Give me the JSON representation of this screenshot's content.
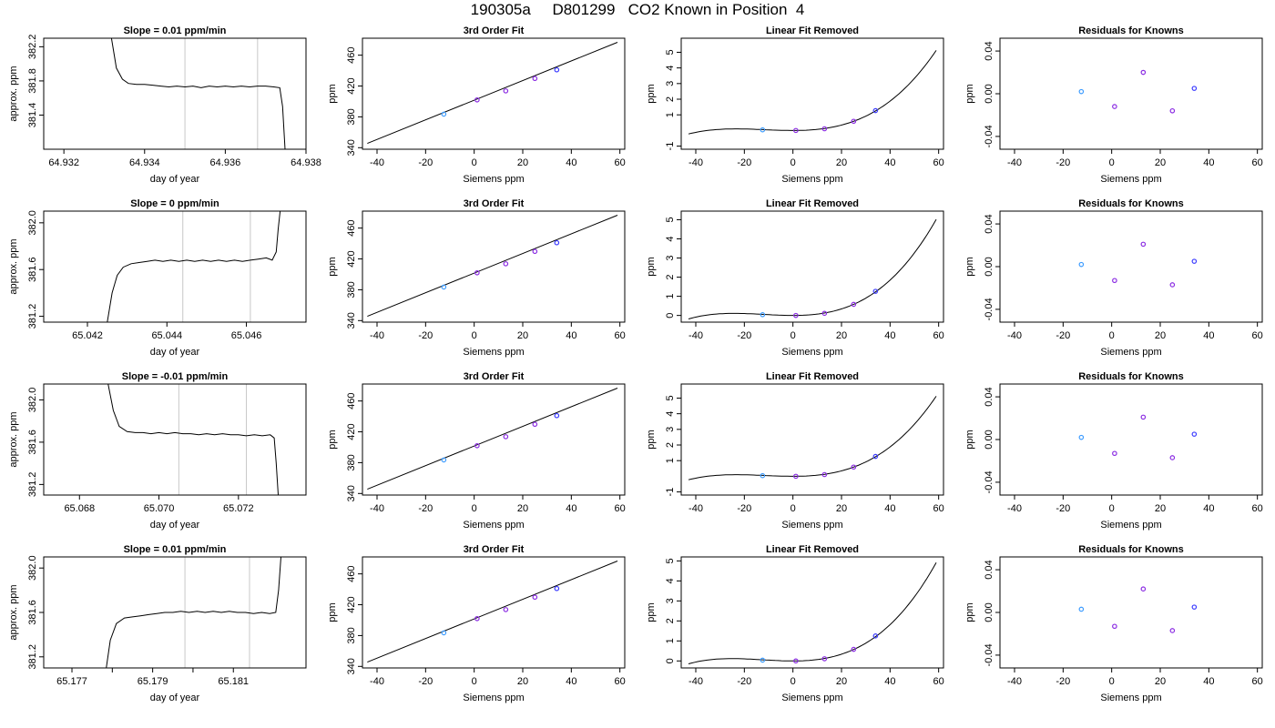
{
  "figure": {
    "title": "190305a     D801299   CO2 Known in Position  4"
  },
  "chart_data": [
    {
      "type": "line",
      "title": "Slope =  0.01  ppm/min",
      "xlabel": "day of year",
      "ylabel": "approx. ppm",
      "xlim": [
        64.9315,
        64.938
      ],
      "ylim": [
        381.0,
        382.3
      ],
      "xticks": [
        64.932,
        64.934,
        64.936,
        64.938
      ],
      "xtick_labels": [
        "64.932",
        "64.934",
        "64.936",
        "64.938"
      ],
      "yticks": [
        381.4,
        381.8,
        382.2
      ],
      "ytick_labels": [
        "381.4",
        "381.8",
        "382.2"
      ],
      "vlines": [
        64.935,
        64.9368
      ],
      "series": [
        {
          "x": [
            64.93318,
            64.9333,
            64.93345,
            64.9336,
            64.9338,
            64.934,
            64.9342,
            64.9344,
            64.9346,
            64.9348,
            64.935,
            64.9352,
            64.9354,
            64.9356,
            64.9358,
            64.936,
            64.9362,
            64.9364,
            64.9366,
            64.9368,
            64.937,
            64.9372,
            64.93735,
            64.93742,
            64.93748
          ],
          "y": [
            382.3,
            381.95,
            381.82,
            381.77,
            381.76,
            381.76,
            381.75,
            381.74,
            381.73,
            381.74,
            381.73,
            381.74,
            381.72,
            381.74,
            381.73,
            381.74,
            381.73,
            381.74,
            381.73,
            381.74,
            381.74,
            381.73,
            381.72,
            381.5,
            381.0
          ]
        }
      ]
    },
    {
      "type": "scatter",
      "title": "3rd Order Fit",
      "xlabel": "Siemens ppm",
      "ylabel": "ppm",
      "xlim": [
        -46,
        62
      ],
      "ylim": [
        338,
        482
      ],
      "xticks": [
        -40,
        -20,
        0,
        20,
        40,
        60
      ],
      "xtick_labels": [
        "-40",
        "-20",
        "0",
        "20",
        "40",
        "60"
      ],
      "yticks": [
        340,
        380,
        420,
        460
      ],
      "ytick_labels": [
        "340",
        "380",
        "420",
        "460"
      ],
      "fit_line": {
        "x": [
          -44,
          59
        ],
        "y": [
          345.6,
          476.7
        ]
      },
      "points": {
        "x": [
          -12.5,
          1.2,
          13,
          25,
          34
        ],
        "y": [
          383.5,
          402,
          413.7,
          429.8,
          441
        ]
      }
    },
    {
      "type": "scatter",
      "title": "Linear Fit Removed",
      "xlabel": "Siemens ppm",
      "ylabel": "ppm",
      "xlim": [
        -46,
        62
      ],
      "ylim": [
        -1.2,
        5.9
      ],
      "xticks": [
        -40,
        -20,
        0,
        20,
        40,
        60
      ],
      "xtick_labels": [
        "-40",
        "-20",
        "0",
        "20",
        "40",
        "60"
      ],
      "yticks": [
        -1,
        1,
        2,
        3,
        4,
        5
      ],
      "ytick_labels": [
        "-1",
        "1",
        "2",
        "3",
        "4",
        "5"
      ],
      "curve": {
        "coef": [
          0.0,
          0.0,
          0.00055,
          1.56e-05
        ]
      },
      "curve_range": [
        -43,
        59
      ],
      "points": {
        "x": [
          -12.5,
          1.2,
          13,
          25,
          34
        ],
        "y": [
          0.04,
          0.0,
          0.11,
          0.59,
          1.27
        ]
      }
    },
    {
      "type": "scatter",
      "title": "Residuals for Knowns",
      "xlabel": "Siemens ppm",
      "ylabel": "ppm",
      "xlim": [
        -46,
        62
      ],
      "ylim": [
        -0.052,
        0.052
      ],
      "xticks": [
        -40,
        -20,
        0,
        20,
        40,
        60
      ],
      "xtick_labels": [
        "-40",
        "-20",
        "0",
        "20",
        "40",
        "60"
      ],
      "yticks": [
        -0.04,
        0.0,
        0.04
      ],
      "ytick_labels": [
        "-0.04",
        "0.00",
        "0.04"
      ],
      "points": {
        "x": [
          -12.5,
          1.2,
          13,
          25,
          34
        ],
        "y": [
          0.002,
          -0.012,
          0.02,
          -0.016,
          0.005
        ]
      }
    },
    {
      "type": "line",
      "title": "Slope =  0  ppm/min",
      "xlabel": "day of year",
      "ylabel": "approx. ppm",
      "xlim": [
        65.0409,
        65.0475
      ],
      "ylim": [
        381.15,
        382.1
      ],
      "xticks": [
        65.042,
        65.044,
        65.046
      ],
      "xtick_labels": [
        "65.042",
        "65.044",
        "65.046"
      ],
      "yticks": [
        381.2,
        381.6,
        382.0
      ],
      "ytick_labels": [
        "381.2",
        "381.6",
        "382.0"
      ],
      "vlines": [
        65.0444,
        65.0461
      ],
      "series": [
        {
          "x": [
            65.0425,
            65.04262,
            65.04275,
            65.0429,
            65.0431,
            65.0433,
            65.0435,
            65.0437,
            65.0439,
            65.0441,
            65.0443,
            65.0445,
            65.0447,
            65.0449,
            65.0451,
            65.0453,
            65.0455,
            65.0457,
            65.0459,
            65.0461,
            65.0463,
            65.0465,
            65.04665,
            65.04675,
            65.0468,
            65.04685
          ],
          "y": [
            381.15,
            381.4,
            381.55,
            381.62,
            381.65,
            381.66,
            381.67,
            381.68,
            381.67,
            381.68,
            381.67,
            381.68,
            381.67,
            381.68,
            381.67,
            381.68,
            381.67,
            381.68,
            381.67,
            381.68,
            381.69,
            381.7,
            381.68,
            381.75,
            381.95,
            382.1
          ]
        }
      ]
    },
    {
      "type": "scatter",
      "title": "3rd Order Fit",
      "xlabel": "Siemens ppm",
      "ylabel": "ppm",
      "xlim": [
        -46,
        62
      ],
      "ylim": [
        338,
        482
      ],
      "xticks": [
        -40,
        -20,
        0,
        20,
        40,
        60
      ],
      "xtick_labels": [
        "-40",
        "-20",
        "0",
        "20",
        "40",
        "60"
      ],
      "yticks": [
        340,
        380,
        420,
        460
      ],
      "ytick_labels": [
        "340",
        "380",
        "420",
        "460"
      ],
      "fit_line": {
        "x": [
          -44,
          59
        ],
        "y": [
          345.6,
          476.7
        ]
      },
      "points": {
        "x": [
          -12.5,
          1.2,
          13,
          25,
          34
        ],
        "y": [
          383.5,
          402,
          413.7,
          429.8,
          441
        ]
      }
    },
    {
      "type": "scatter",
      "title": "Linear Fit Removed",
      "xlabel": "Siemens ppm",
      "ylabel": "ppm",
      "xlim": [
        -46,
        62
      ],
      "ylim": [
        -0.35,
        5.45
      ],
      "xticks": [
        -40,
        -20,
        0,
        20,
        40,
        60
      ],
      "xtick_labels": [
        "-40",
        "-20",
        "0",
        "20",
        "40",
        "60"
      ],
      "yticks": [
        0,
        1,
        2,
        3,
        4,
        5
      ],
      "ytick_labels": [
        "0",
        "1",
        "2",
        "3",
        "4",
        "5"
      ],
      "curve": {
        "coef": [
          0.0,
          0.0,
          0.00055,
          1.51e-05
        ]
      },
      "curve_range": [
        -43,
        59
      ],
      "points": {
        "x": [
          -12.5,
          1.2,
          13,
          25,
          34
        ],
        "y": [
          0.04,
          0.0,
          0.11,
          0.58,
          1.26
        ]
      }
    },
    {
      "type": "scatter",
      "title": "Residuals for Knowns",
      "xlabel": "Siemens ppm",
      "ylabel": "ppm",
      "xlim": [
        -46,
        62
      ],
      "ylim": [
        -0.052,
        0.052
      ],
      "xticks": [
        -40,
        -20,
        0,
        20,
        40,
        60
      ],
      "xtick_labels": [
        "-40",
        "-20",
        "0",
        "20",
        "40",
        "60"
      ],
      "yticks": [
        -0.04,
        0.0,
        0.04
      ],
      "ytick_labels": [
        "-0.04",
        "0.00",
        "0.04"
      ],
      "points": {
        "x": [
          -12.5,
          1.2,
          13,
          25,
          34
        ],
        "y": [
          0.002,
          -0.013,
          0.021,
          -0.017,
          0.005
        ]
      }
    },
    {
      "type": "line",
      "title": "Slope =  -0.01  ppm/min",
      "xlabel": "day of year",
      "ylabel": "approx. ppm",
      "xlim": [
        65.0671,
        65.0737
      ],
      "ylim": [
        381.1,
        382.15
      ],
      "xticks": [
        65.068,
        65.07,
        65.072
      ],
      "xtick_labels": [
        "65.068",
        "65.070",
        "65.072"
      ],
      "yticks": [
        381.2,
        381.6,
        382.0
      ],
      "ytick_labels": [
        "381.2",
        "381.6",
        "382.0"
      ],
      "vlines": [
        65.0705,
        65.0722
      ],
      "series": [
        {
          "x": [
            65.06872,
            65.06885,
            65.069,
            65.0692,
            65.0694,
            65.0696,
            65.0698,
            65.07,
            65.0702,
            65.0704,
            65.0706,
            65.0708,
            65.071,
            65.0712,
            65.0714,
            65.0716,
            65.0718,
            65.072,
            65.0722,
            65.0724,
            65.0726,
            65.0728,
            65.0729,
            65.07295,
            65.073
          ],
          "y": [
            382.15,
            381.9,
            381.75,
            381.7,
            381.69,
            381.69,
            381.68,
            381.69,
            381.68,
            381.69,
            381.68,
            381.68,
            381.67,
            381.68,
            381.67,
            381.68,
            381.67,
            381.67,
            381.66,
            381.67,
            381.66,
            381.67,
            381.64,
            381.4,
            381.1
          ]
        }
      ]
    },
    {
      "type": "scatter",
      "title": "3rd Order Fit",
      "xlabel": "Siemens ppm",
      "ylabel": "ppm",
      "xlim": [
        -46,
        62
      ],
      "ylim": [
        338,
        482
      ],
      "xticks": [
        -40,
        -20,
        0,
        20,
        40,
        60
      ],
      "xtick_labels": [
        "-40",
        "-20",
        "0",
        "20",
        "40",
        "60"
      ],
      "yticks": [
        340,
        380,
        420,
        460
      ],
      "ytick_labels": [
        "340",
        "380",
        "420",
        "460"
      ],
      "fit_line": {
        "x": [
          -44,
          59
        ],
        "y": [
          345.6,
          476.7
        ]
      },
      "points": {
        "x": [
          -12.5,
          1.2,
          13,
          25,
          34
        ],
        "y": [
          383.5,
          402,
          413.7,
          429.8,
          441
        ]
      }
    },
    {
      "type": "scatter",
      "title": "Linear Fit Removed",
      "xlabel": "Siemens ppm",
      "ylabel": "ppm",
      "xlim": [
        -46,
        62
      ],
      "ylim": [
        -1.2,
        5.9
      ],
      "xticks": [
        -40,
        -20,
        0,
        20,
        40,
        60
      ],
      "xtick_labels": [
        "-40",
        "-20",
        "0",
        "20",
        "40",
        "60"
      ],
      "yticks": [
        -1,
        1,
        2,
        3,
        4,
        5
      ],
      "ytick_labels": [
        "-1",
        "1",
        "2",
        "3",
        "4",
        "5"
      ],
      "curve": {
        "coef": [
          0.0,
          0.0,
          0.00055,
          1.56e-05
        ]
      },
      "curve_range": [
        -43,
        59
      ],
      "points": {
        "x": [
          -12.5,
          1.2,
          13,
          25,
          34
        ],
        "y": [
          0.04,
          0.0,
          0.11,
          0.59,
          1.27
        ]
      }
    },
    {
      "type": "scatter",
      "title": "Residuals for Knowns",
      "xlabel": "Siemens ppm",
      "ylabel": "ppm",
      "xlim": [
        -46,
        62
      ],
      "ylim": [
        -0.052,
        0.052
      ],
      "xticks": [
        -40,
        -20,
        0,
        20,
        40,
        60
      ],
      "xtick_labels": [
        "-40",
        "-20",
        "0",
        "20",
        "40",
        "60"
      ],
      "yticks": [
        -0.04,
        0.0,
        0.04
      ],
      "ytick_labels": [
        "-0.04",
        "0.00",
        "0.04"
      ],
      "points": {
        "x": [
          -12.5,
          1.2,
          13,
          25,
          34
        ],
        "y": [
          0.002,
          -0.013,
          0.021,
          -0.017,
          0.005
        ]
      }
    },
    {
      "type": "line",
      "title": "Slope =  0.01  ppm/min",
      "xlabel": "day of year",
      "ylabel": "approx. ppm",
      "xlim": [
        65.1763,
        65.1828
      ],
      "ylim": [
        381.1,
        382.1
      ],
      "xticks": [
        65.177,
        65.178,
        65.179,
        65.18,
        65.181
      ],
      "xtick_labels": [
        "65.177",
        "",
        "65.179",
        "",
        "65.181"
      ],
      "yticks": [
        381.2,
        381.6,
        382.0
      ],
      "ytick_labels": [
        "381.2",
        "381.6",
        "382.0"
      ],
      "vlines": [
        65.1798,
        65.1814
      ],
      "series": [
        {
          "x": [
            65.17785,
            65.17795,
            65.1781,
            65.1783,
            65.1785,
            65.1787,
            65.1789,
            65.1791,
            65.1793,
            65.1795,
            65.1797,
            65.1799,
            65.1801,
            65.1803,
            65.1805,
            65.1807,
            65.1809,
            65.1811,
            65.1813,
            65.1815,
            65.1817,
            65.1819,
            65.18205,
            65.18212,
            65.18218
          ],
          "y": [
            381.1,
            381.35,
            381.5,
            381.55,
            381.56,
            381.57,
            381.58,
            381.59,
            381.6,
            381.6,
            381.61,
            381.6,
            381.61,
            381.6,
            381.61,
            381.6,
            381.61,
            381.6,
            381.6,
            381.59,
            381.6,
            381.59,
            381.6,
            381.8,
            382.1
          ]
        }
      ]
    },
    {
      "type": "scatter",
      "title": "3rd Order Fit",
      "xlabel": "Siemens ppm",
      "ylabel": "ppm",
      "xlim": [
        -46,
        62
      ],
      "ylim": [
        338,
        482
      ],
      "xticks": [
        -40,
        -20,
        0,
        20,
        40,
        60
      ],
      "xtick_labels": [
        "-40",
        "-20",
        "0",
        "20",
        "40",
        "60"
      ],
      "yticks": [
        340,
        380,
        420,
        460
      ],
      "ytick_labels": [
        "340",
        "380",
        "420",
        "460"
      ],
      "fit_line": {
        "x": [
          -44,
          59
        ],
        "y": [
          345.6,
          476.7
        ]
      },
      "points": {
        "x": [
          -12.5,
          1.2,
          13,
          25,
          34
        ],
        "y": [
          383.5,
          402,
          413.7,
          429.8,
          441
        ]
      }
    },
    {
      "type": "scatter",
      "title": "Linear Fit Removed",
      "xlabel": "Siemens ppm",
      "ylabel": "ppm",
      "xlim": [
        -46,
        62
      ],
      "ylim": [
        -0.35,
        5.2
      ],
      "xticks": [
        -40,
        -20,
        0,
        20,
        40,
        60
      ],
      "xtick_labels": [
        "-40",
        "-20",
        "0",
        "20",
        "40",
        "60"
      ],
      "yticks": [
        0,
        1,
        2,
        3,
        4,
        5
      ],
      "ytick_labels": [
        "0",
        "1",
        "2",
        "3",
        "4",
        "5"
      ],
      "curve": {
        "coef": [
          0.0,
          0.0,
          0.00055,
          1.46e-05
        ]
      },
      "curve_range": [
        -43,
        59
      ],
      "points": {
        "x": [
          -12.5,
          1.2,
          13,
          25,
          34
        ],
        "y": [
          0.04,
          0.0,
          0.11,
          0.58,
          1.25
        ]
      }
    },
    {
      "type": "scatter",
      "title": "Residuals for Knowns",
      "xlabel": "Siemens ppm",
      "ylabel": "ppm",
      "xlim": [
        -46,
        62
      ],
      "ylim": [
        -0.052,
        0.052
      ],
      "xticks": [
        -40,
        -20,
        0,
        20,
        40,
        60
      ],
      "xtick_labels": [
        "-40",
        "-20",
        "0",
        "20",
        "40",
        "60"
      ],
      "yticks": [
        -0.04,
        0.0,
        0.04
      ],
      "ytick_labels": [
        "-0.04",
        "0.00",
        "0.04"
      ],
      "points": {
        "x": [
          -12.5,
          1.2,
          13,
          25,
          34
        ],
        "y": [
          0.003,
          -0.013,
          0.022,
          -0.017,
          0.005
        ]
      }
    }
  ]
}
